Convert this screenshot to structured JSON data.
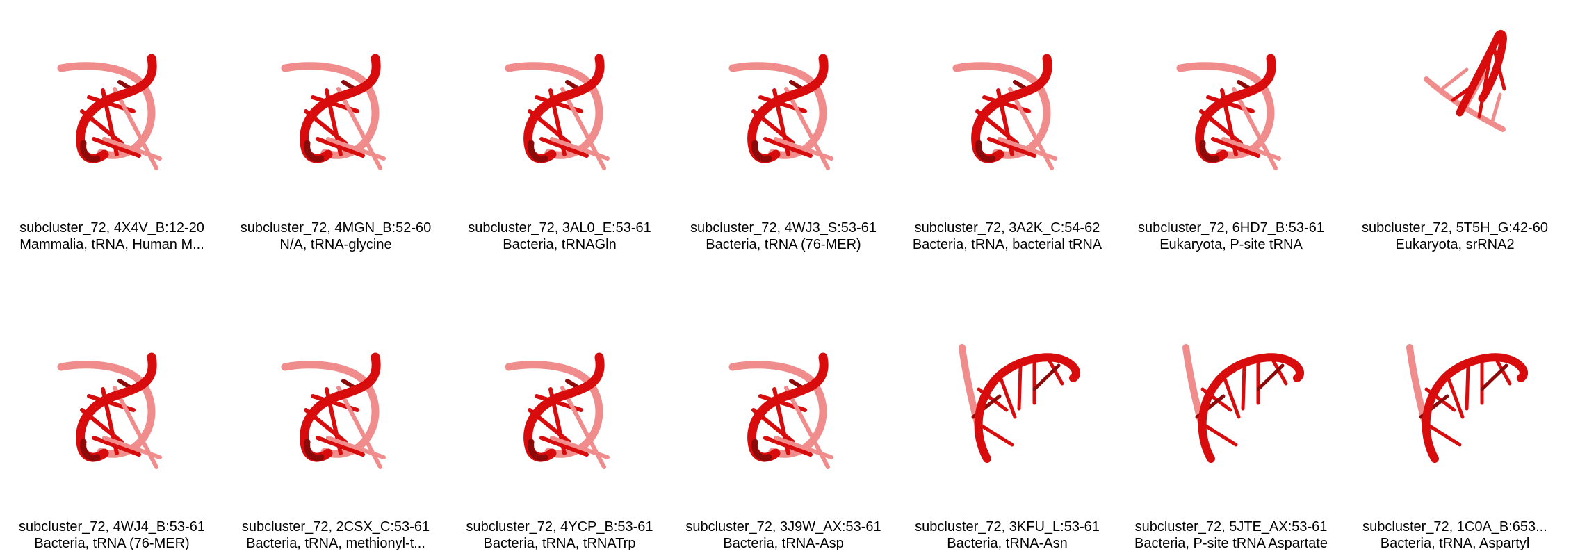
{
  "colors": {
    "backbone": "#d80c0c",
    "backbone_dark": "#8c0a0a",
    "backbone_faded": "#f08c8c",
    "background": "#ffffff",
    "text": "#000000"
  },
  "panels": [
    {
      "title": "subcluster_72, 4X4V_B:12-20",
      "subtitle": "Mammalia, tRNA, Human M...",
      "shape": "knot"
    },
    {
      "title": "subcluster_72, 4MGN_B:52-60",
      "subtitle": "N/A, tRNA-glycine",
      "shape": "knot"
    },
    {
      "title": "subcluster_72, 3AL0_E:53-61",
      "subtitle": "Bacteria, tRNAGln",
      "shape": "knot"
    },
    {
      "title": "subcluster_72, 4WJ3_S:53-61",
      "subtitle": "Bacteria, tRNA (76-MER)",
      "shape": "knot"
    },
    {
      "title": "subcluster_72, 3A2K_C:54-62",
      "subtitle": "Bacteria, tRNA, bacterial tRNA",
      "shape": "knot"
    },
    {
      "title": "subcluster_72, 6HD7_B:53-61",
      "subtitle": "Eukaryota, P-site tRNA",
      "shape": "knot"
    },
    {
      "title": "subcluster_72, 5T5H_G:42-60",
      "subtitle": "Eukaryota, srRNA2",
      "shape": "helix"
    },
    {
      "title": "subcluster_72, 4WJ4_B:53-61",
      "subtitle": "Bacteria, tRNA (76-MER)",
      "shape": "knot"
    },
    {
      "title": "subcluster_72, 2CSX_C:53-61",
      "subtitle": "Bacteria, tRNA, methionyl-t...",
      "shape": "knot"
    },
    {
      "title": "subcluster_72, 4YCP_B:53-61",
      "subtitle": "Bacteria, tRNA, tRNATrp",
      "shape": "knot"
    },
    {
      "title": "subcluster_72, 3J9W_AX:53-61",
      "subtitle": "Bacteria, tRNA-Asp",
      "shape": "knot"
    },
    {
      "title": "subcluster_72, 3KFU_L:53-61",
      "subtitle": "Bacteria, tRNA-Asn",
      "shape": "arch"
    },
    {
      "title": "subcluster_72, 5JTE_AX:53-61",
      "subtitle": "Bacteria, P-site tRNA Aspartate",
      "shape": "arch"
    },
    {
      "title": "subcluster_72, 1C0A_B:653...",
      "subtitle": "Bacteria, tRNA, Aspartyl",
      "shape": "arch"
    }
  ]
}
